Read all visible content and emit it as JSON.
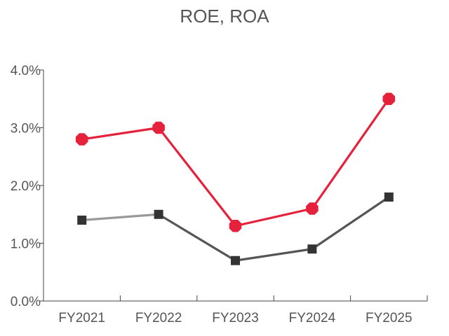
{
  "chart_data": {
    "type": "line",
    "title": "ROE, ROA",
    "categories": [
      "FY2021",
      "FY2022",
      "FY2023",
      "FY2024",
      "FY2025"
    ],
    "y_tick_labels": [
      "0.0%",
      "1.0%",
      "2.0%",
      "3.0%",
      "4.0%"
    ],
    "ylim": [
      0,
      4
    ],
    "grid": false,
    "series": [
      {
        "values": [
          2.8,
          3.0,
          1.3,
          1.6,
          3.5
        ],
        "color": "#e5213b",
        "marker": "octagon"
      },
      {
        "values": [
          1.4,
          1.5,
          0.7,
          0.9,
          1.8
        ],
        "color": "#555555",
        "first_segment_color": "#999999",
        "marker_color": "#333333",
        "marker": "square"
      }
    ]
  }
}
